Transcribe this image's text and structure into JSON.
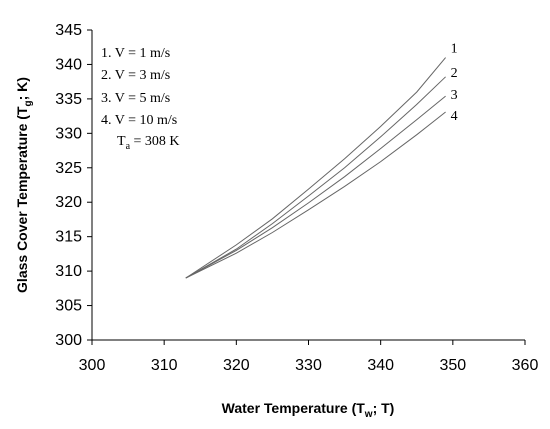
{
  "chart_data": {
    "type": "line",
    "xlabel": {
      "main": "Water Temperature (T",
      "sub": "w",
      "rest": "; T)"
    },
    "ylabel": {
      "main": "Glass Cover Temperature (T",
      "sub": "g",
      "rest": "; K)"
    },
    "xlim": [
      300,
      360
    ],
    "ylim": [
      300,
      345
    ],
    "xticks": [
      "300",
      "310",
      "320",
      "330",
      "340",
      "350",
      "360"
    ],
    "yticks": [
      "300",
      "305",
      "310",
      "315",
      "320",
      "325",
      "330",
      "335",
      "340",
      "345"
    ],
    "grid": false,
    "legend": {
      "placement": "top-left",
      "entries": [
        "1. V = 1 m/s",
        "2. V = 3 m/s",
        "3. V = 5 m/s",
        "4. V = 10 m/s"
      ],
      "ambient": {
        "main": "T",
        "sub": "a",
        "rest": " = 308 K"
      }
    },
    "series": [
      {
        "name": "1",
        "x": [
          313,
          320,
          325,
          330,
          335,
          340,
          345,
          349
        ],
        "y": [
          309,
          313.8,
          317.6,
          321.9,
          326.3,
          331.0,
          336.0,
          341.0
        ]
      },
      {
        "name": "2",
        "x": [
          313,
          320,
          325,
          330,
          335,
          340,
          345,
          349
        ],
        "y": [
          309,
          313.2,
          316.9,
          320.9,
          325.0,
          329.5,
          334.2,
          338.2
        ]
      },
      {
        "name": "3",
        "x": [
          313,
          320,
          325,
          330,
          335,
          340,
          345,
          349
        ],
        "y": [
          309,
          313.0,
          316.3,
          319.9,
          323.7,
          327.8,
          332.0,
          335.4
        ]
      },
      {
        "name": "4",
        "x": [
          313,
          320,
          325,
          330,
          335,
          340,
          345,
          349
        ],
        "y": [
          309,
          312.6,
          315.6,
          318.9,
          322.3,
          325.9,
          329.8,
          333.1
        ]
      }
    ],
    "colors": {
      "line": "#666666",
      "axis": "#000000"
    }
  }
}
